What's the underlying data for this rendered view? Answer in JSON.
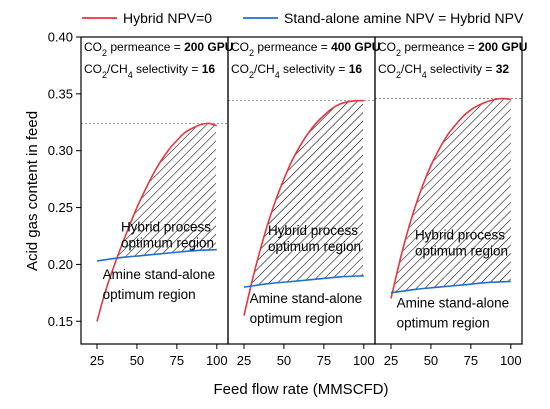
{
  "chart_data": {
    "type": "line",
    "ylabel": "Acid gas content in feed",
    "xlabel": "Feed flow rate (MMSCFD)",
    "ylim": [
      0.13,
      0.4
    ],
    "y_ticks": [
      "0.15",
      "0.20",
      "0.25",
      "0.30",
      "0.35",
      "0.40"
    ],
    "y_tick_values": [
      0.15,
      0.2,
      0.25,
      0.3,
      0.35,
      0.4
    ],
    "xlim": [
      15,
      107
    ],
    "x_ticks": [
      "25",
      "50",
      "75",
      "100"
    ],
    "x_tick_values": [
      25,
      50,
      75,
      100
    ],
    "legend": {
      "placement": "top",
      "entries": [
        {
          "label": "Hybrid NPV=0",
          "color": "#e8363e"
        },
        {
          "label": "Stand-alone amine NPV = Hybrid NPV",
          "color": "#1f6fcf"
        }
      ]
    },
    "panels": [
      {
        "permeance_prefix": "CO",
        "permeance_sub": "2",
        "permeance_text": " permeance = ",
        "permeance_value": "200 GPU",
        "selectivity_prefix": "CO",
        "selectivity_sub1": "2",
        "selectivity_mid": "/CH",
        "selectivity_sub2": "4",
        "selectivity_text": " selectivity = ",
        "selectivity_value": "16",
        "hybrid_region_label": [
          "Hybrid process",
          "optimum region"
        ],
        "amine_region_label": [
          "Amine stand-alone",
          "optimum region"
        ],
        "series": [
          {
            "name": "Hybrid NPV=0",
            "x": [
              25,
              30,
              35,
              40,
              45,
              50,
              55,
              60,
              65,
              70,
              75,
              80,
              85,
              90,
              95,
              100
            ],
            "y": [
              0.15,
              0.175,
              0.196,
              0.215,
              0.233,
              0.25,
              0.265,
              0.279,
              0.291,
              0.301,
              0.309,
              0.316,
              0.32,
              0.323,
              0.324,
              0.322
            ]
          },
          {
            "name": "Stand-alone amine NPV = Hybrid NPV",
            "x": [
              25,
              40,
              55,
              70,
              85,
              100
            ],
            "y": [
              0.203,
              0.206,
              0.208,
              0.21,
              0.212,
              0.213
            ]
          }
        ]
      },
      {
        "permeance_prefix": "CO",
        "permeance_sub": "2",
        "permeance_text": " permeance = ",
        "permeance_value": "400 GPU",
        "selectivity_prefix": "CO",
        "selectivity_sub1": "2",
        "selectivity_mid": "/CH",
        "selectivity_sub2": "4",
        "selectivity_text": " selectivity = ",
        "selectivity_value": "16",
        "hybrid_region_label": [
          "Hybrid process",
          "optimum region"
        ],
        "amine_region_label": [
          "Amine stand-alone",
          "optimum region"
        ],
        "series": [
          {
            "name": "Hybrid NPV=0",
            "x": [
              25,
              30,
              35,
              40,
              45,
              50,
              55,
              60,
              65,
              70,
              75,
              80,
              85,
              90,
              95,
              100
            ],
            "y": [
              0.155,
              0.185,
              0.212,
              0.236,
              0.257,
              0.275,
              0.291,
              0.304,
              0.315,
              0.324,
              0.331,
              0.337,
              0.341,
              0.343,
              0.344,
              0.344
            ]
          },
          {
            "name": "Stand-alone amine NPV = Hybrid NPV",
            "x": [
              25,
              40,
              55,
              70,
              85,
              100
            ],
            "y": [
              0.18,
              0.183,
              0.185,
              0.187,
              0.189,
              0.19
            ]
          }
        ]
      },
      {
        "permeance_prefix": "CO",
        "permeance_sub": "2",
        "permeance_text": " permeance = ",
        "permeance_value": "200 GPU",
        "selectivity_prefix": "CO",
        "selectivity_sub1": "2",
        "selectivity_mid": "/CH",
        "selectivity_sub2": "4",
        "selectivity_text": " selectivity = ",
        "selectivity_value": "32",
        "hybrid_region_label": [
          "Hybrid process",
          "optimum region"
        ],
        "amine_region_label": [
          "Amine stand-alone",
          "optimum region"
        ],
        "series": [
          {
            "name": "Hybrid NPV=0",
            "x": [
              25,
              30,
              35,
              40,
              45,
              50,
              55,
              60,
              65,
              70,
              75,
              80,
              85,
              90,
              95,
              100
            ],
            "y": [
              0.17,
              0.2,
              0.227,
              0.25,
              0.27,
              0.287,
              0.301,
              0.313,
              0.322,
              0.33,
              0.336,
              0.34,
              0.343,
              0.345,
              0.346,
              0.345
            ]
          },
          {
            "name": "Stand-alone amine NPV = Hybrid NPV",
            "x": [
              25,
              40,
              55,
              70,
              85,
              100
            ],
            "y": [
              0.175,
              0.178,
              0.18,
              0.182,
              0.184,
              0.185
            ]
          }
        ]
      }
    ]
  }
}
